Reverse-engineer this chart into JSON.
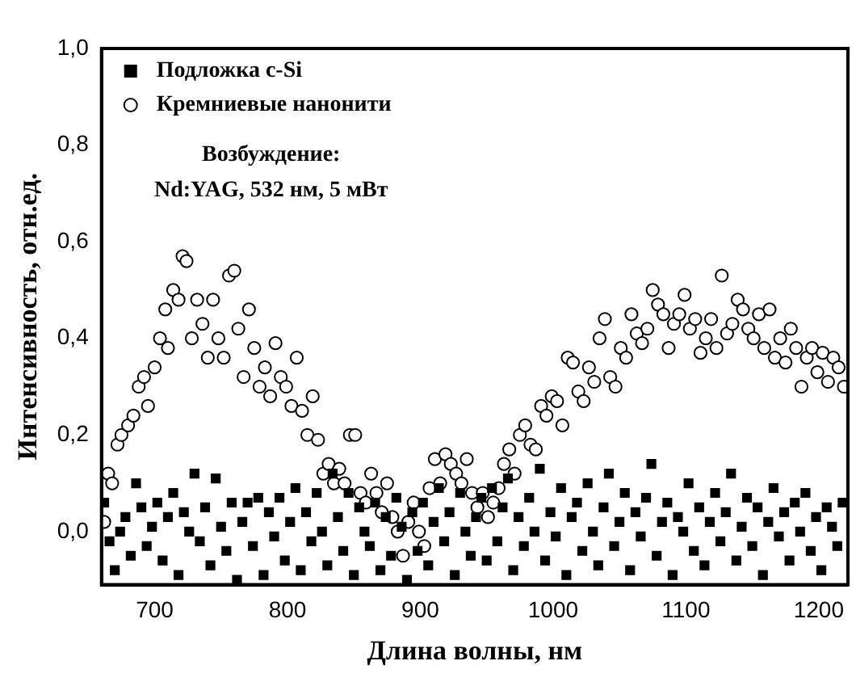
{
  "chart_data": {
    "type": "scatter",
    "xlabel": "Длина волны, нм",
    "ylabel": "Интенсивность, отн.ед.",
    "xlim": [
      660,
      1222
    ],
    "ylim": [
      -0.11,
      1.0
    ],
    "xticks": [
      700,
      800,
      900,
      1000,
      1100,
      1200
    ],
    "yticks": [
      {
        "value": 0,
        "label": "0,0"
      },
      {
        "value": 0.2,
        "label": "0,2"
      },
      {
        "value": 0.4,
        "label": "0,4"
      },
      {
        "value": 0.6,
        "label": "0,6"
      },
      {
        "value": 0.8,
        "label": "0,8"
      },
      {
        "value": 1.0,
        "label": "1,0"
      }
    ],
    "grid": false,
    "legend": "top left",
    "annotations": [
      "Возбуждение:",
      "Nd:YAG, 532 нм, 5 мВт"
    ],
    "series": [
      {
        "name": "Подложка c-Si",
        "color": "#000000",
        "marker": "square",
        "x": [
          662,
          666,
          670,
          674,
          678,
          682,
          686,
          690,
          694,
          698,
          702,
          706,
          710,
          714,
          718,
          722,
          726,
          730,
          734,
          738,
          742,
          746,
          750,
          754,
          758,
          762,
          766,
          770,
          774,
          778,
          782,
          786,
          790,
          794,
          798,
          802,
          806,
          810,
          814,
          818,
          822,
          826,
          830,
          834,
          838,
          842,
          846,
          850,
          854,
          858,
          862,
          866,
          870,
          874,
          878,
          882,
          886,
          890,
          894,
          898,
          902,
          906,
          910,
          914,
          918,
          922,
          926,
          930,
          934,
          938,
          942,
          946,
          950,
          954,
          958,
          962,
          966,
          970,
          974,
          978,
          982,
          986,
          990,
          994,
          998,
          1002,
          1006,
          1010,
          1014,
          1018,
          1022,
          1026,
          1030,
          1034,
          1038,
          1042,
          1046,
          1050,
          1054,
          1058,
          1062,
          1066,
          1070,
          1074,
          1078,
          1082,
          1086,
          1090,
          1094,
          1098,
          1102,
          1106,
          1110,
          1114,
          1118,
          1122,
          1126,
          1130,
          1134,
          1138,
          1142,
          1146,
          1150,
          1154,
          1158,
          1162,
          1166,
          1170,
          1174,
          1178,
          1182,
          1186,
          1190,
          1194,
          1198,
          1202,
          1206,
          1210,
          1214,
          1218
        ],
        "values": [
          0.06,
          -0.02,
          -0.08,
          0.0,
          0.03,
          -0.05,
          0.1,
          0.05,
          -0.03,
          0.01,
          0.06,
          -0.06,
          0.03,
          0.08,
          -0.09,
          0.04,
          0.0,
          0.12,
          -0.02,
          0.05,
          -0.07,
          0.11,
          0.01,
          -0.04,
          0.06,
          -0.1,
          0.02,
          0.06,
          -0.03,
          0.07,
          -0.09,
          0.04,
          -0.01,
          0.07,
          -0.06,
          0.02,
          0.09,
          -0.08,
          0.04,
          -0.02,
          0.08,
          0.0,
          -0.07,
          0.12,
          0.03,
          -0.04,
          0.08,
          -0.09,
          0.05,
          0.0,
          -0.03,
          0.06,
          -0.08,
          0.03,
          -0.05,
          0.07,
          0.01,
          -0.1,
          0.04,
          -0.04,
          0.06,
          -0.07,
          0.02,
          0.09,
          -0.02,
          0.04,
          -0.09,
          0.08,
          0.0,
          -0.05,
          0.03,
          0.07,
          -0.06,
          0.09,
          -0.02,
          0.05,
          0.11,
          -0.08,
          0.03,
          -0.03,
          0.07,
          0.0,
          0.13,
          -0.06,
          0.04,
          -0.01,
          0.09,
          -0.09,
          0.03,
          0.06,
          -0.04,
          0.1,
          0.0,
          -0.07,
          0.05,
          0.12,
          -0.03,
          0.02,
          0.08,
          -0.08,
          0.04,
          -0.01,
          0.07,
          0.14,
          -0.05,
          0.02,
          0.06,
          -0.09,
          0.03,
          0.0,
          0.1,
          -0.04,
          0.05,
          -0.07,
          0.02,
          0.08,
          -0.02,
          0.04,
          0.12,
          -0.06,
          0.01,
          0.07,
          -0.03,
          0.05,
          -0.09,
          0.02,
          0.09,
          -0.01,
          0.04,
          -0.06,
          0.06,
          0.0,
          0.08,
          -0.04,
          0.03,
          -0.08,
          0.05,
          0.01,
          -0.03,
          0.06
        ]
      },
      {
        "name": "Кремниевые нанонити",
        "color": "#000000",
        "marker": "circle",
        "x": [
          662,
          665,
          668,
          672,
          675,
          680,
          684,
          688,
          692,
          695,
          700,
          704,
          708,
          710,
          714,
          718,
          721,
          724,
          728,
          732,
          736,
          740,
          744,
          748,
          752,
          756,
          760,
          763,
          767,
          771,
          775,
          779,
          783,
          787,
          791,
          795,
          799,
          803,
          807,
          811,
          815,
          819,
          823,
          827,
          831,
          835,
          839,
          843,
          847,
          851,
          855,
          859,
          863,
          867,
          871,
          875,
          879,
          883,
          887,
          891,
          895,
          899,
          903,
          907,
          911,
          915,
          919,
          923,
          927,
          931,
          935,
          939,
          943,
          947,
          951,
          955,
          959,
          963,
          967,
          971,
          975,
          979,
          983,
          987,
          991,
          995,
          999,
          1003,
          1007,
          1011,
          1015,
          1019,
          1023,
          1027,
          1031,
          1035,
          1039,
          1043,
          1047,
          1051,
          1055,
          1059,
          1063,
          1067,
          1071,
          1075,
          1079,
          1083,
          1087,
          1091,
          1095,
          1099,
          1103,
          1107,
          1111,
          1115,
          1119,
          1123,
          1127,
          1131,
          1135,
          1139,
          1143,
          1147,
          1151,
          1155,
          1159,
          1163,
          1167,
          1171,
          1175,
          1179,
          1183,
          1187,
          1191,
          1195,
          1199,
          1203,
          1207,
          1211,
          1215,
          1219
        ],
        "values": [
          0.02,
          0.12,
          0.1,
          0.18,
          0.2,
          0.22,
          0.24,
          0.3,
          0.32,
          0.26,
          0.34,
          0.4,
          0.46,
          0.38,
          0.5,
          0.48,
          0.57,
          0.56,
          0.4,
          0.48,
          0.43,
          0.36,
          0.48,
          0.4,
          0.36,
          0.53,
          0.54,
          0.42,
          0.32,
          0.46,
          0.38,
          0.3,
          0.34,
          0.28,
          0.39,
          0.32,
          0.3,
          0.26,
          0.36,
          0.25,
          0.2,
          0.28,
          0.19,
          0.12,
          0.14,
          0.1,
          0.13,
          0.1,
          0.2,
          0.2,
          0.08,
          0.06,
          0.12,
          0.08,
          0.04,
          0.1,
          0.03,
          0.0,
          -0.05,
          0.02,
          0.06,
          0.0,
          -0.03,
          0.09,
          0.15,
          0.1,
          0.16,
          0.14,
          0.12,
          0.1,
          0.15,
          0.08,
          0.05,
          0.08,
          0.03,
          0.06,
          0.09,
          0.14,
          0.17,
          0.12,
          0.2,
          0.22,
          0.18,
          0.17,
          0.26,
          0.24,
          0.28,
          0.27,
          0.22,
          0.36,
          0.35,
          0.29,
          0.27,
          0.34,
          0.31,
          0.4,
          0.44,
          0.32,
          0.3,
          0.38,
          0.36,
          0.45,
          0.41,
          0.39,
          0.42,
          0.5,
          0.47,
          0.45,
          0.38,
          0.43,
          0.45,
          0.49,
          0.42,
          0.44,
          0.37,
          0.4,
          0.44,
          0.38,
          0.53,
          0.41,
          0.43,
          0.48,
          0.46,
          0.42,
          0.4,
          0.45,
          0.38,
          0.46,
          0.36,
          0.4,
          0.35,
          0.42,
          0.38,
          0.3,
          0.36,
          0.38,
          0.33,
          0.37,
          0.31,
          0.36,
          0.34,
          0.3
        ]
      }
    ]
  }
}
